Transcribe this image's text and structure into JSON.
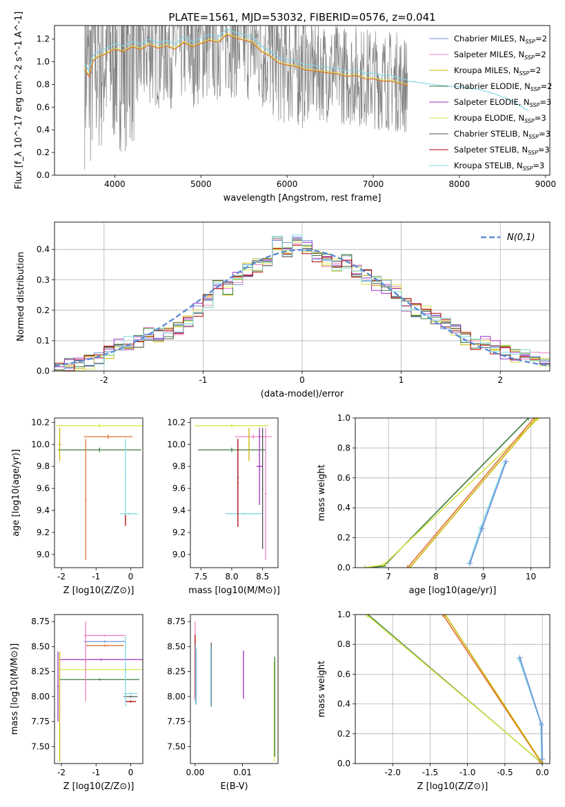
{
  "figure": {
    "title": "PLATE=1561, MJD=53032, FIBERID=0576, z=0.041"
  },
  "colors": {
    "Chabrier MILES": "#6d8fd8",
    "Salpeter MILES": "#ee82c0",
    "Kroupa MILES": "#c8b400",
    "Chabrier ELODIE": "#3a7a3a",
    "Salpeter ELODIE": "#9a2ec0",
    "Kroupa ELODIE": "#d6e64a",
    "Chabrier STELIB": "#505050",
    "Salpeter STELIB": "#b00000",
    "Kroupa STELIB": "#7fd8e4",
    "data": "#808080",
    "orange": "#e07030"
  },
  "chart_data": [
    {
      "id": "spectrum",
      "type": "line",
      "xlabel": "wavelength [Angstrom, rest frame]",
      "ylabel": "Flux [f_λ 10^-17 erg cm^-2 s^-1 A^-1]",
      "xlim": [
        3300,
        9050
      ],
      "ylim": [
        0,
        1.32
      ],
      "xticks": [
        4000,
        5000,
        6000,
        7000,
        8000,
        9000
      ],
      "yticks": [
        0.0,
        0.2,
        0.4,
        0.6,
        0.8,
        1.0,
        1.2
      ],
      "legend_position": "top-right",
      "legend": [
        {
          "name": "Chabrier MILES",
          "n": "2"
        },
        {
          "name": "Salpeter MILES",
          "n": "2"
        },
        {
          "name": "Kroupa MILES",
          "n": "2"
        },
        {
          "name": "Chabrier ELODIE",
          "n": "2"
        },
        {
          "name": "Salpeter ELODIE",
          "n": "3"
        },
        {
          "name": "Kroupa ELODIE",
          "n": "3"
        },
        {
          "name": "Chabrier STELIB",
          "n": "3"
        },
        {
          "name": "Salpeter STELIB",
          "n": "3"
        },
        {
          "name": "Kroupa STELIB",
          "n": "3"
        }
      ],
      "model_continuum": {
        "x": [
          3650,
          3700,
          3750,
          3800,
          3900,
          4000,
          4100,
          4200,
          4300,
          4400,
          4500,
          4600,
          4700,
          4800,
          4900,
          5000,
          5100,
          5200,
          5300,
          5400,
          5500,
          5600,
          5700,
          5800,
          5900,
          6000,
          6100,
          6200,
          6300,
          6400,
          6500,
          6600,
          6700,
          6800,
          6900,
          7000,
          7100,
          7200,
          7300,
          7400
        ],
        "y": [
          0.95,
          0.88,
          1.02,
          1.05,
          1.08,
          1.12,
          1.1,
          1.14,
          1.12,
          1.16,
          1.13,
          1.15,
          1.12,
          1.18,
          1.14,
          1.17,
          1.2,
          1.18,
          1.25,
          1.22,
          1.2,
          1.18,
          1.1,
          1.06,
          1.0,
          0.98,
          0.97,
          0.94,
          0.93,
          0.92,
          0.91,
          0.9,
          0.88,
          0.89,
          0.86,
          0.86,
          0.84,
          0.84,
          0.82,
          0.8
        ]
      },
      "stelib_extension": {
        "x": [
          7400,
          7600,
          7800,
          8000,
          8200,
          8400,
          8600,
          8800
        ],
        "y": [
          0.83,
          0.81,
          0.79,
          0.78,
          0.76,
          0.72,
          0.66,
          0.57
        ]
      }
    },
    {
      "id": "residual_histogram",
      "type": "line",
      "xlabel": "(data-model)/error",
      "ylabel": "Normed distribution",
      "xlim": [
        -2.5,
        2.5
      ],
      "ylim": [
        0,
        0.49
      ],
      "xticks": [
        -2,
        -1,
        0,
        1,
        2
      ],
      "yticks": [
        0.0,
        0.1,
        0.2,
        0.3,
        0.4
      ],
      "legend_position": "top-right",
      "legend_label": "N(0,1)",
      "bin_edges": [
        -2.5,
        -2.4,
        -2.3,
        -2.2,
        -2.1,
        -2.0,
        -1.9,
        -1.8,
        -1.7,
        -1.6,
        -1.5,
        -1.4,
        -1.3,
        -1.2,
        -1.1,
        -1.0,
        -0.9,
        -0.8,
        -0.7,
        -0.6,
        -0.5,
        -0.4,
        -0.3,
        -0.2,
        -0.1,
        0.0,
        0.1,
        0.2,
        0.3,
        0.4,
        0.5,
        0.6,
        0.7,
        0.8,
        0.9,
        1.0,
        1.1,
        1.2,
        1.3,
        1.4,
        1.5,
        1.6,
        1.7,
        1.8,
        1.9,
        2.0,
        2.1,
        2.2,
        2.3,
        2.4,
        2.5
      ],
      "hist": [
        0.01,
        0.02,
        0.02,
        0.03,
        0.04,
        0.06,
        0.08,
        0.09,
        0.1,
        0.12,
        0.12,
        0.13,
        0.14,
        0.17,
        0.2,
        0.23,
        0.28,
        0.27,
        0.3,
        0.33,
        0.35,
        0.37,
        0.42,
        0.4,
        0.43,
        0.41,
        0.38,
        0.36,
        0.35,
        0.36,
        0.33,
        0.31,
        0.29,
        0.28,
        0.26,
        0.22,
        0.2,
        0.19,
        0.17,
        0.15,
        0.13,
        0.11,
        0.09,
        0.09,
        0.08,
        0.06,
        0.05,
        0.05,
        0.04,
        0.04
      ]
    },
    {
      "id": "age_vs_Z",
      "type": "scatter",
      "xlabel": "Z [log10(Z/Z⊙)]",
      "ylabel": "age [log10(age/yr)]",
      "xlim": [
        -2.2,
        0.35
      ],
      "ylim": [
        8.88,
        10.24
      ],
      "xticks": [
        -2,
        -1,
        0
      ],
      "yticks": [
        9.0,
        9.2,
        9.4,
        9.6,
        9.8,
        10.0,
        10.2
      ],
      "crosses": [
        {
          "series": "Kroupa ELODIE",
          "x": -0.9,
          "xerr": 1.25,
          "y": 10.17,
          "yerr": 0.02
        },
        {
          "series": "Chabrier ELODIE",
          "x": -0.9,
          "xerr": 1.2,
          "y": 9.95,
          "yerr": 0.02
        },
        {
          "series": "Kroupa MILES",
          "x": -2.05,
          "xerr": 0.04,
          "y": 10.0,
          "yerr": 0.15
        },
        {
          "series": "orange",
          "x": -0.65,
          "xerr": 0.7,
          "y": 10.07,
          "yerr": 0.02
        },
        {
          "series": "orange",
          "x": -1.3,
          "xerr": 0.02,
          "y": 9.5,
          "yerr": 0.55
        },
        {
          "series": "Kroupa STELIB",
          "x": -0.05,
          "xerr": 0.25,
          "y": 9.37,
          "yerr": 0.01
        },
        {
          "series": "Kroupa STELIB",
          "x": -0.15,
          "xerr": 0.02,
          "y": 9.7,
          "yerr": 0.35
        },
        {
          "series": "Salpeter STELIB",
          "x": -0.15,
          "xerr": 0.01,
          "y": 9.31,
          "yerr": 0.05
        }
      ]
    },
    {
      "id": "age_vs_mass",
      "type": "scatter",
      "xlabel": "mass [log10(M/M⊙)]",
      "ylabel": "",
      "xlim": [
        7.33,
        8.75
      ],
      "ylim": [
        8.88,
        10.24
      ],
      "xticks": [
        7.5,
        8.0,
        8.5
      ],
      "yticks": [
        9.0,
        9.2,
        9.4,
        9.6,
        9.8,
        10.0,
        10.2
      ],
      "crosses": [
        {
          "series": "Kroupa ELODIE",
          "x": 8.0,
          "xerr": 0.6,
          "y": 10.17,
          "yerr": 0.02
        },
        {
          "series": "Chabrier ELODIE",
          "x": 8.0,
          "xerr": 0.55,
          "y": 9.95,
          "yerr": 0.02
        },
        {
          "series": "Salpeter MILES",
          "x": 8.35,
          "xerr": 0.3,
          "y": 10.07,
          "yerr": 0.02
        },
        {
          "series": "Salpeter MILES",
          "x": 8.55,
          "xerr": 0.02,
          "y": 9.55,
          "yerr": 0.6
        },
        {
          "series": "Salpeter ELODIE",
          "x": 8.45,
          "xerr": 0.05,
          "y": 9.8,
          "yerr": 0.35
        },
        {
          "series": "Kroupa STELIB",
          "x": 8.2,
          "xerr": 0.3,
          "y": 9.37,
          "yerr": 0.01
        },
        {
          "series": "Kroupa STELIB",
          "x": 8.1,
          "xerr": 0.02,
          "y": 9.7,
          "yerr": 0.35
        },
        {
          "series": "Salpeter STELIB",
          "x": 8.1,
          "xerr": 0.01,
          "y": 9.65,
          "yerr": 0.4
        },
        {
          "series": "Kroupa MILES",
          "x": 8.28,
          "xerr": 0.01,
          "y": 10.0,
          "yerr": 0.15
        },
        {
          "series": "Chabrier STELIB",
          "x": 8.5,
          "xerr": 0.01,
          "y": 9.6,
          "yerr": 0.55
        }
      ]
    },
    {
      "id": "massweight_vs_age",
      "type": "line",
      "xlabel": "age [log10(age/yr)]",
      "ylabel": "mass weight",
      "xlim": [
        6.3,
        10.4
      ],
      "ylim": [
        0,
        1.0
      ],
      "xticks": [
        7,
        8,
        9,
        10
      ],
      "yticks": [
        0.0,
        0.2,
        0.4,
        0.6,
        0.8,
        1.0
      ],
      "series": [
        {
          "color": "Chabrier ELODIE",
          "x": [
            6.5,
            6.9,
            9.95
          ],
          "y": [
            0.0,
            0.01,
            1.0
          ]
        },
        {
          "color": "Kroupa ELODIE",
          "x": [
            6.5,
            6.9,
            10.17
          ],
          "y": [
            0.0,
            0.02,
            1.0
          ]
        },
        {
          "color": "orange",
          "x": [
            7.4,
            10.07
          ],
          "y": [
            0.0,
            1.0
          ]
        },
        {
          "color": "Kroupa MILES",
          "x": [
            7.45,
            10.12
          ],
          "y": [
            0.0,
            1.0
          ]
        },
        {
          "color": "Kroupa STELIB",
          "x": [
            8.7,
            8.95,
            9.45
          ],
          "y": [
            0.03,
            0.27,
            0.7
          ]
        },
        {
          "color": "Chabrier MILES",
          "x": [
            8.72,
            8.97,
            9.48
          ],
          "y": [
            0.03,
            0.26,
            0.71
          ]
        }
      ]
    },
    {
      "id": "mass_vs_Z",
      "type": "scatter",
      "xlabel": "Z [log10(Z/Z⊙)]",
      "ylabel": "mass [log10(M/M⊙)]",
      "xlim": [
        -2.2,
        0.35
      ],
      "ylim": [
        7.33,
        8.82
      ],
      "xticks": [
        -2,
        -1,
        0
      ],
      "yticks": [
        7.5,
        7.75,
        8.0,
        8.25,
        8.5,
        8.75
      ],
      "crosses": [
        {
          "series": "Salpeter MILES",
          "x": -0.75,
          "xerr": 0.6,
          "y": 8.61,
          "yerr": 0.01
        },
        {
          "series": "Chabrier MILES",
          "x": -0.75,
          "xerr": 0.6,
          "y": 8.55,
          "yerr": 0.01
        },
        {
          "series": "orange",
          "x": -0.75,
          "xerr": 0.55,
          "y": 8.51,
          "yerr": 0.01
        },
        {
          "series": "Salpeter ELODIE",
          "x": -0.85,
          "xerr": 1.2,
          "y": 8.37,
          "yerr": 0.01
        },
        {
          "series": "Kroupa ELODIE",
          "x": -0.85,
          "xerr": 1.2,
          "y": 8.27,
          "yerr": 0.01
        },
        {
          "series": "Chabrier ELODIE",
          "x": -0.9,
          "xerr": 1.15,
          "y": 8.17,
          "yerr": 0.01
        },
        {
          "series": "Kroupa STELIB",
          "x": 0.0,
          "xerr": 0.2,
          "y": 8.03,
          "yerr": 0.01
        },
        {
          "series": "Chabrier STELIB",
          "x": 0.0,
          "xerr": 0.2,
          "y": 8.0,
          "yerr": 0.01
        },
        {
          "series": "Salpeter STELIB",
          "x": 0.0,
          "xerr": 0.15,
          "y": 7.95,
          "yerr": 0.01
        },
        {
          "series": "Salpeter MILES",
          "x": -1.3,
          "xerr": 0.02,
          "y": 8.35,
          "yerr": 0.4
        },
        {
          "series": "Salpeter ELODIE",
          "x": -2.1,
          "xerr": 0.02,
          "y": 8.1,
          "yerr": 0.35
        },
        {
          "series": "Kroupa MILES",
          "x": -2.05,
          "xerr": 0.02,
          "y": 7.9,
          "yerr": 0.55
        },
        {
          "series": "Kroupa STELIB",
          "x": -0.15,
          "xerr": 0.02,
          "y": 8.25,
          "yerr": 0.35
        }
      ]
    },
    {
      "id": "mass_vs_ebv",
      "type": "scatter",
      "xlabel": "E(B-V)",
      "ylabel": "",
      "xlim": [
        -0.001,
        0.0175
      ],
      "ylim": [
        7.33,
        8.82
      ],
      "xticks": [
        0.0,
        0.01
      ],
      "yticks": [
        7.5,
        7.75,
        8.0,
        8.25,
        8.5,
        8.75
      ],
      "crosses": [
        {
          "series": "Salpeter MILES",
          "x": 0.0,
          "y": 8.35,
          "yerr": 0.4
        },
        {
          "series": "Salpeter STELIB",
          "x": 0.0,
          "y": 8.3,
          "yerr": 0.32
        },
        {
          "series": "Chabrier MILES",
          "x": 0.0002,
          "y": 8.2,
          "yerr": 0.28
        },
        {
          "series": "Kroupa STELIB",
          "x": 0.0001,
          "y": 8.22,
          "yerr": 0.3
        },
        {
          "series": "Chabrier STELIB",
          "x": 0.0034,
          "y": 8.22,
          "yerr": 0.32
        },
        {
          "series": "Kroupa STELIB",
          "x": 0.0033,
          "y": 8.2,
          "yerr": 0.3
        },
        {
          "series": "Salpeter ELODIE",
          "x": 0.0102,
          "y": 8.22,
          "yerr": 0.24
        },
        {
          "series": "Kroupa ELODIE",
          "x": 0.0167,
          "y": 7.85,
          "yerr": 0.5
        },
        {
          "series": "Chabrier ELODIE",
          "x": 0.0168,
          "y": 7.9,
          "yerr": 0.5
        }
      ]
    },
    {
      "id": "massweight_vs_Z",
      "type": "line",
      "xlabel": "Z [log10(Z/Z⊙)]",
      "ylabel": "mass weight",
      "xlim": [
        -2.5,
        0.1
      ],
      "ylim": [
        0,
        1.0
      ],
      "xticks": [
        -2.0,
        -1.5,
        -1.0,
        -0.5,
        0.0
      ],
      "yticks": [
        0.0,
        0.2,
        0.4,
        0.6,
        0.8,
        1.0
      ],
      "series": [
        {
          "color": "Chabrier ELODIE",
          "x": [
            -2.33,
            0.0
          ],
          "y": [
            1.0,
            0.0
          ]
        },
        {
          "color": "Kroupa ELODIE",
          "x": [
            -2.35,
            -0.02
          ],
          "y": [
            1.0,
            0.01
          ]
        },
        {
          "color": "orange",
          "x": [
            -1.33,
            -0.02
          ],
          "y": [
            1.0,
            0.01
          ]
        },
        {
          "color": "Kroupa MILES",
          "x": [
            -1.3,
            0.0
          ],
          "y": [
            1.0,
            0.0
          ]
        },
        {
          "color": "Kroupa STELIB",
          "x": [
            -0.31,
            -0.02,
            -0.01
          ],
          "y": [
            0.7,
            0.27,
            0.03
          ]
        },
        {
          "color": "Chabrier MILES",
          "x": [
            -0.3,
            -0.01,
            0.0
          ],
          "y": [
            0.71,
            0.26,
            0.03
          ]
        }
      ]
    }
  ]
}
